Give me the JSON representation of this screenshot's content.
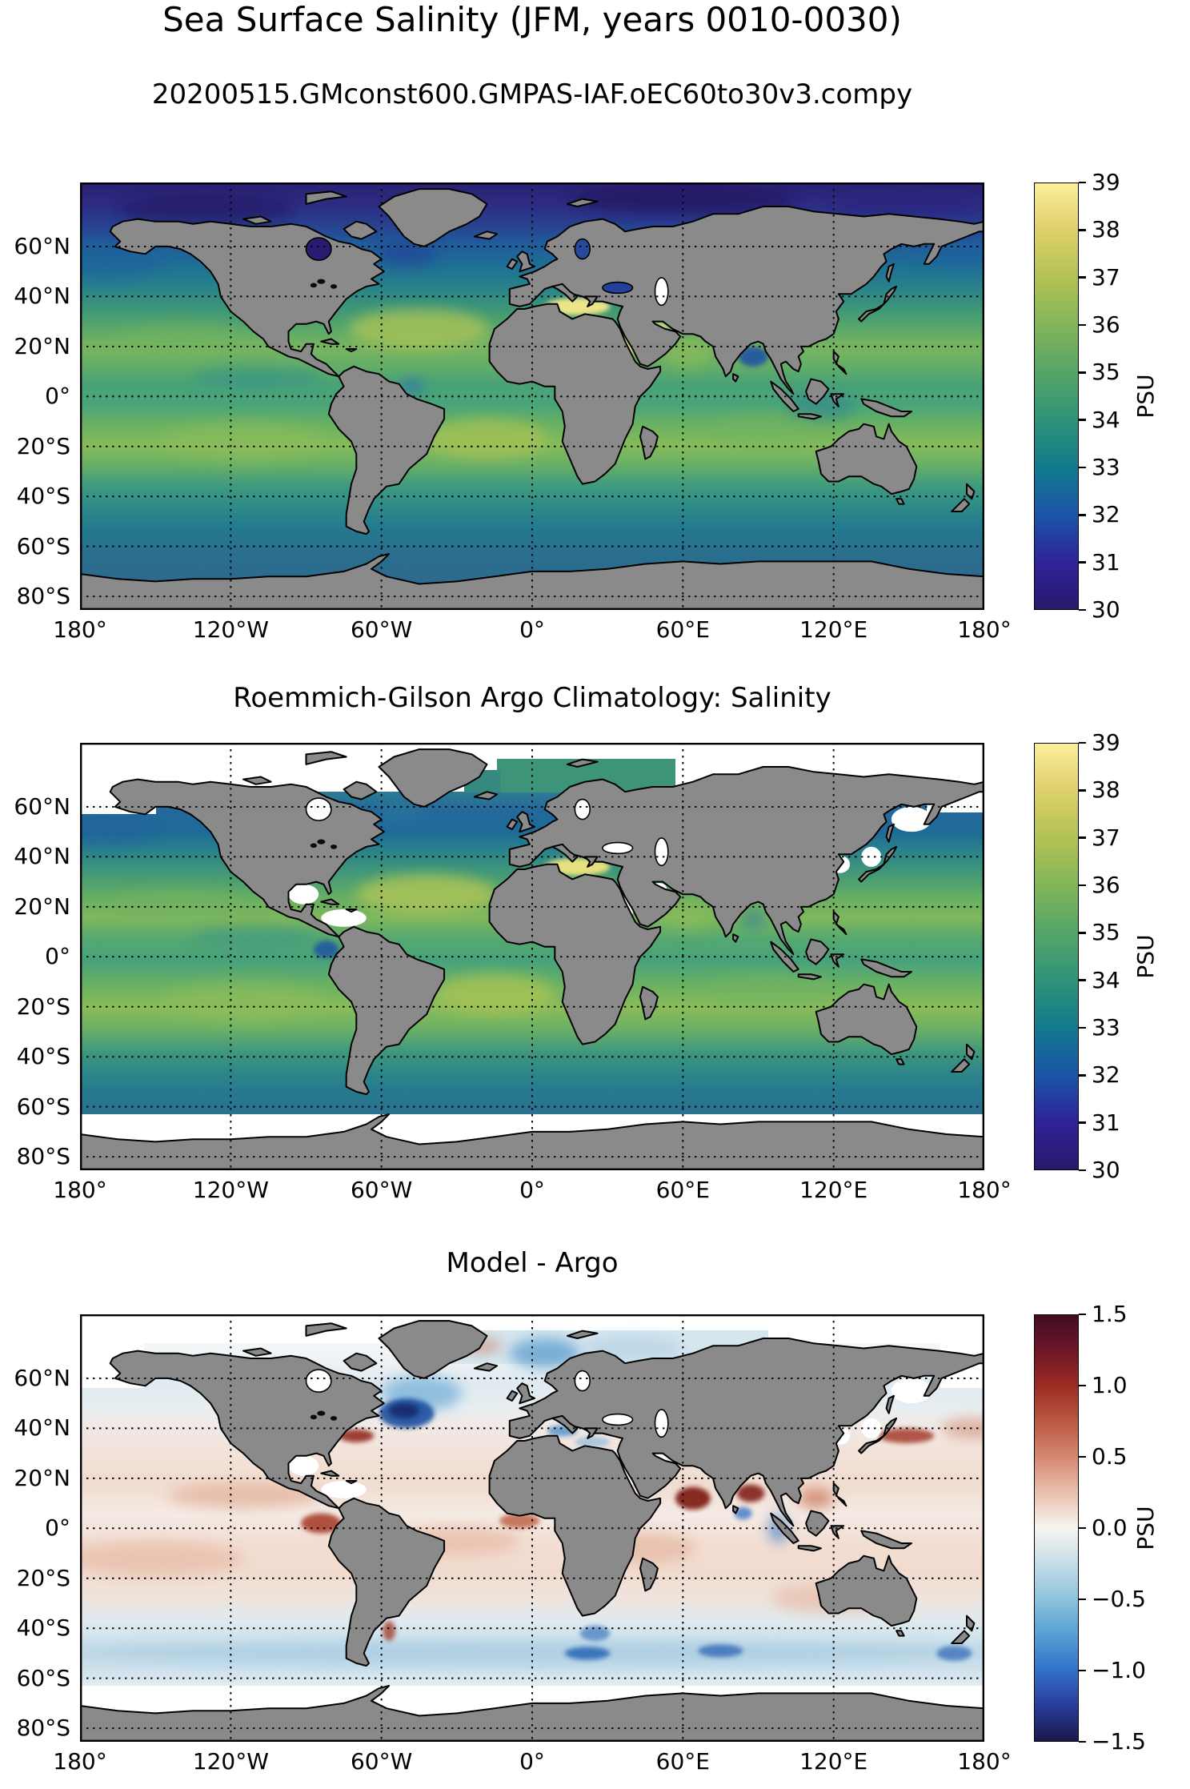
{
  "figure": {
    "suptitle": "Sea Surface Salinity (JFM, years 0010-0030)",
    "background_color": "#ffffff",
    "units": "PSU",
    "land_color": "#8a8a8a",
    "coastline_color": "#000000"
  },
  "axes": {
    "lat_tick_labels": [
      "60°N",
      "40°N",
      "20°N",
      "0°",
      "20°S",
      "40°S",
      "60°S",
      "80°S"
    ],
    "lat_tick_values": [
      60,
      40,
      20,
      0,
      -20,
      -40,
      -60,
      -80
    ],
    "lon_tick_labels": [
      "180°",
      "120°W",
      "60°W",
      "0°",
      "60°E",
      "120°E",
      "180°"
    ],
    "lon_tick_values": [
      -180,
      -120,
      -60,
      0,
      60,
      120,
      180
    ],
    "grid_style": "dotted"
  },
  "panels": [
    {
      "id": "model",
      "title": "20200515.GMconst600.GMPAS-IAF.oEC60to30v3.compy",
      "colorbar": {
        "label": "PSU",
        "min": 30,
        "max": 39,
        "ticks": [
          "39",
          "38",
          "37",
          "36",
          "35",
          "34",
          "33",
          "32",
          "31",
          "30"
        ],
        "colormap_name": "haline",
        "stops": [
          {
            "value": 30,
            "color": "#2a186c"
          },
          {
            "value": 31,
            "color": "#2e2399"
          },
          {
            "value": 32,
            "color": "#1b55a7"
          },
          {
            "value": 33,
            "color": "#127a8d"
          },
          {
            "value": 34,
            "color": "#2e9378"
          },
          {
            "value": 35,
            "color": "#55a568"
          },
          {
            "value": 36,
            "color": "#82b559"
          },
          {
            "value": 37,
            "color": "#b2c254"
          },
          {
            "value": 38,
            "color": "#ddd06a"
          },
          {
            "value": 39,
            "color": "#fdee9c"
          }
        ]
      }
    },
    {
      "id": "argo",
      "title": "Roemmich-Gilson Argo Climatology: Salinity",
      "colorbar": {
        "label": "PSU",
        "min": 30,
        "max": 39,
        "ticks": [
          "39",
          "38",
          "37",
          "36",
          "35",
          "34",
          "33",
          "32",
          "31",
          "30"
        ],
        "colormap_name": "haline",
        "stops": [
          {
            "value": 30,
            "color": "#2a186c"
          },
          {
            "value": 31,
            "color": "#2e2399"
          },
          {
            "value": 32,
            "color": "#1b55a7"
          },
          {
            "value": 33,
            "color": "#127a8d"
          },
          {
            "value": 34,
            "color": "#2e9378"
          },
          {
            "value": 35,
            "color": "#55a568"
          },
          {
            "value": 36,
            "color": "#82b559"
          },
          {
            "value": 37,
            "color": "#b2c254"
          },
          {
            "value": 38,
            "color": "#ddd06a"
          },
          {
            "value": 39,
            "color": "#fdee9c"
          }
        ]
      }
    },
    {
      "id": "diff",
      "title": "Model - Argo",
      "colorbar": {
        "label": "PSU",
        "min": -1.5,
        "max": 1.5,
        "ticks": [
          "1.5",
          "1.0",
          "0.5",
          "0.0",
          "−0.5",
          "−1.0",
          "−1.5"
        ],
        "colormap_name": "balance",
        "stops": [
          {
            "value": -1.5,
            "color": "#19184a"
          },
          {
            "value": -1.25,
            "color": "#2b3c9c"
          },
          {
            "value": -1.0,
            "color": "#3072c8"
          },
          {
            "value": -0.75,
            "color": "#55a0d3"
          },
          {
            "value": -0.5,
            "color": "#8ec3dc"
          },
          {
            "value": -0.25,
            "color": "#c6dde8"
          },
          {
            "value": 0.0,
            "color": "#f7f4f1"
          },
          {
            "value": 0.25,
            "color": "#e9c0ae"
          },
          {
            "value": 0.5,
            "color": "#d58871"
          },
          {
            "value": 0.75,
            "color": "#bc5843"
          },
          {
            "value": 1.0,
            "color": "#9c2c23"
          },
          {
            "value": 1.25,
            "color": "#6e1628"
          },
          {
            "value": 1.5,
            "color": "#410c22"
          }
        ]
      }
    }
  ],
  "chart_data": [
    {
      "type": "heatmap",
      "panel": "top",
      "title": "20200515.GMconst600.GMPAS-IAF.oEC60to30v3.compy",
      "variable": "Sea Surface Salinity (model)",
      "season": "JFM",
      "years": "0010-0030",
      "units": "PSU",
      "projection": "equirectangular",
      "lon_range": [
        -180,
        180
      ],
      "lat_range": [
        -85.4,
        85.6
      ],
      "value_range": [
        30,
        39
      ],
      "colorbar_ticks": [
        39,
        38,
        37,
        36,
        35,
        34,
        33,
        32,
        31,
        30
      ],
      "colormap": "haline (dark indigo 30 -> blue -> teal -> green -> pale yellow 39)",
      "x_ticks": [
        "180°",
        "120°W",
        "60°W",
        "0°",
        "60°E",
        "120°E",
        "180°"
      ],
      "y_ticks": [
        "60°N",
        "40°N",
        "20°N",
        "0°",
        "20°S",
        "40°S",
        "60°S",
        "80°S"
      ],
      "grid": "dotted black",
      "notable_features": [
        "Arctic Ocean very fresh, 30-32 PSU (dark indigo/navy)",
        "Hudson Bay, Baltic and Black Sea fresh (dark blue)",
        "Subtropical salinity maxima ~36-37 PSU (yellow-green) in N and S Atlantic and S Pacific around 20-25° latitude",
        "Mediterranean Sea, Red Sea and Persian Gulf 38-39 PSU (pale yellow)",
        "Bay of Bengal and Amazon/Congo river plumes fresh (blue)",
        "Southern Ocean ~33.5-34.5 PSU (teal-blue)"
      ]
    },
    {
      "type": "heatmap",
      "panel": "middle",
      "title": "Roemmich-Gilson Argo Climatology: Salinity",
      "variable": "Sea Surface Salinity (Argo observations)",
      "units": "PSU",
      "projection": "equirectangular",
      "lon_range": [
        -180,
        180
      ],
      "lat_range": [
        -85.4,
        85.6
      ],
      "value_range": [
        30,
        39
      ],
      "colorbar_ticks": [
        39,
        38,
        37,
        36,
        35,
        34,
        33,
        32,
        31,
        30
      ],
      "colormap": "haline (dark indigo 30 -> blue -> teal -> green -> pale yellow 39)",
      "x_ticks": [
        "180°",
        "120°W",
        "60°W",
        "0°",
        "60°E",
        "120°E",
        "180°"
      ],
      "y_ticks": [
        "60°N",
        "40°N",
        "20°N",
        "0°",
        "20°S",
        "40°S",
        "60°S",
        "80°S"
      ],
      "grid": "dotted black",
      "notable_features": [
        "White = no Argo data: Arctic Ocean (except Nordic/Barents seas patch), Southern Ocean south of ~62°S, Hudson Bay, Gulf of Mexico, Caribbean, Red Sea, Persian Gulf, Sea of Okhotsk, Sea of Japan, coastal strips",
        "Mediterranean ~38-39 PSU (yellow)",
        "Same large-scale salinity pattern as the model panel: subtropical maxima ~36-37 PSU, fresh Bay of Bengal and eastern equatorial Pacific"
      ]
    },
    {
      "type": "heatmap",
      "panel": "bottom",
      "title": "Model - Argo",
      "variable": "Sea Surface Salinity difference (model minus Argo)",
      "units": "PSU",
      "projection": "equirectangular",
      "lon_range": [
        -180,
        180
      ],
      "lat_range": [
        -85.4,
        85.6
      ],
      "value_range": [
        -1.5,
        1.5
      ],
      "colorbar_ticks": [
        1.5,
        1.0,
        0.5,
        0.0,
        -0.5,
        -1.0,
        -1.5
      ],
      "colormap": "balance (dark navy -1.5 -> blue -> white 0 -> red -> dark maroon +1.5)",
      "x_ticks": [
        "180°",
        "120°W",
        "60°W",
        "0°",
        "60°E",
        "120°E",
        "180°"
      ],
      "y_ticks": [
        "60°N",
        "40°N",
        "20°N",
        "0°",
        "20°S",
        "40°S",
        "60°S",
        "80°S"
      ],
      "grid": "dotted black",
      "notable_features": [
        "Strong fresh bias (dark blue, below -1 PSU) in NW Atlantic / Labrador Sea and subpolar North Atlantic, Nordic Seas",
        "Salty bias (dark red, ~+1 PSU) off the US east coast (Gulf Stream), eastern equatorial Pacific off Panama/Ecuador, Arabian Sea, Bay of Bengal, Kuroshio east of Japan",
        "Broad weak salty bias (+0.1 to +0.4) across subtropical Pacific, Atlantic and Indian Oceans",
        "Fresh bias band (-0.3 to -1.0) along 45-55°S with darker blue patches south of Africa, in the south Indian Ocean and near New Zealand",
        "Mediterranean mostly fresh-biased (blue); white band south of ~62°S where Argo has no data"
      ]
    }
  ]
}
